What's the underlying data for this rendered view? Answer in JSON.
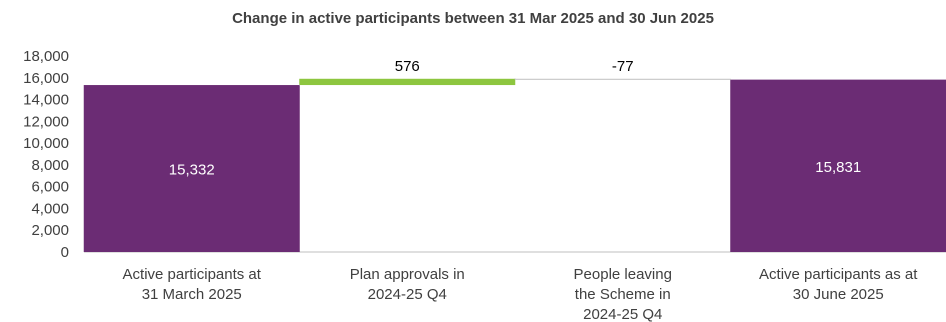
{
  "chart_data": {
    "type": "bar",
    "subtype": "waterfall",
    "title": "Change in active participants between 31 Mar 2025 and 30 Jun 2025",
    "categories": [
      [
        "Active participants at",
        "31 March 2025"
      ],
      [
        "Plan approvals in",
        "2024-25 Q4"
      ],
      [
        "People leaving",
        "the Scheme in",
        "2024-25 Q4"
      ],
      [
        "Active participants as at",
        "30 June 2025"
      ]
    ],
    "values": [
      15332,
      576,
      -77,
      15831
    ],
    "data_labels": [
      "15,332",
      "576",
      "-77",
      "15,831"
    ],
    "bar_kinds": [
      "total",
      "increase",
      "decrease",
      "total"
    ],
    "ylim": [
      0,
      18000
    ],
    "yticks": [
      0,
      2000,
      4000,
      6000,
      8000,
      10000,
      12000,
      14000,
      16000,
      18000
    ],
    "ytick_labels": [
      "0",
      "2,000",
      "4,000",
      "6,000",
      "8,000",
      "10,000",
      "12,000",
      "14,000",
      "16,000",
      "18,000"
    ],
    "grid": false,
    "legend": "none",
    "colors": {
      "total": "#6B2C74",
      "increase": "#8DC63F",
      "decrease": "#BFBFBF",
      "axis": "#BFBFBF",
      "text": "#404040"
    }
  }
}
